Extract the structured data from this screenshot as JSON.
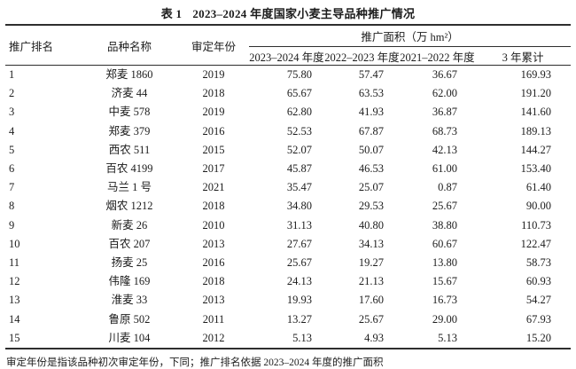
{
  "table": {
    "label": "表 1",
    "title": "2023–2024 年度国家小麦主导品种推广情况",
    "columns": {
      "rank": "推广排名",
      "variety": "品种名称",
      "year": "审定年份",
      "area_group": "推广面积（万 hm²）",
      "sub": {
        "y2324": "2023–2024 年度",
        "y2223": "2022–2023 年度",
        "y2122": "2021–2022 年度",
        "total": "3 年累计"
      }
    },
    "rows": [
      {
        "rank": "1",
        "variety": "郑麦 1860",
        "year": "2019",
        "y2324": "75.80",
        "y2223": "57.47",
        "y2122": "36.67",
        "total": "169.93"
      },
      {
        "rank": "2",
        "variety": "济麦 44",
        "year": "2018",
        "y2324": "65.67",
        "y2223": "63.53",
        "y2122": "62.00",
        "total": "191.20"
      },
      {
        "rank": "3",
        "variety": "中麦 578",
        "year": "2019",
        "y2324": "62.80",
        "y2223": "41.93",
        "y2122": "36.87",
        "total": "141.60"
      },
      {
        "rank": "4",
        "variety": "郑麦 379",
        "year": "2016",
        "y2324": "52.53",
        "y2223": "67.87",
        "y2122": "68.73",
        "total": "189.13"
      },
      {
        "rank": "5",
        "variety": "西农 511",
        "year": "2015",
        "y2324": "52.07",
        "y2223": "50.07",
        "y2122": "42.13",
        "total": "144.27"
      },
      {
        "rank": "6",
        "variety": "百农 4199",
        "year": "2017",
        "y2324": "45.87",
        "y2223": "46.53",
        "y2122": "61.00",
        "total": "153.40"
      },
      {
        "rank": "7",
        "variety": "马兰 1 号",
        "year": "2021",
        "y2324": "35.47",
        "y2223": "25.07",
        "y2122": "0.87",
        "total": "61.40"
      },
      {
        "rank": "8",
        "variety": "烟农 1212",
        "year": "2018",
        "y2324": "34.80",
        "y2223": "29.53",
        "y2122": "25.67",
        "total": "90.00"
      },
      {
        "rank": "9",
        "variety": "新麦 26",
        "year": "2010",
        "y2324": "31.13",
        "y2223": "40.80",
        "y2122": "38.80",
        "total": "110.73"
      },
      {
        "rank": "10",
        "variety": "百农 207",
        "year": "2013",
        "y2324": "27.67",
        "y2223": "34.13",
        "y2122": "60.67",
        "total": "122.47"
      },
      {
        "rank": "11",
        "variety": "扬麦 25",
        "year": "2016",
        "y2324": "25.67",
        "y2223": "19.27",
        "y2122": "13.80",
        "total": "58.73"
      },
      {
        "rank": "12",
        "variety": "伟隆 169",
        "year": "2018",
        "y2324": "24.13",
        "y2223": "21.13",
        "y2122": "15.67",
        "total": "60.93"
      },
      {
        "rank": "13",
        "variety": "淮麦 33",
        "year": "2013",
        "y2324": "19.93",
        "y2223": "17.60",
        "y2122": "16.73",
        "total": "54.27"
      },
      {
        "rank": "14",
        "variety": "鲁原 502",
        "year": "2011",
        "y2324": "13.27",
        "y2223": "25.67",
        "y2122": "29.00",
        "total": "67.93"
      },
      {
        "rank": "15",
        "variety": "川麦 104",
        "year": "2012",
        "y2324": "5.13",
        "y2223": "4.93",
        "y2122": "5.13",
        "total": "15.20"
      }
    ],
    "footnote": "审定年份是指该品种初次审定年份，下同；推广排名依据 2023–2024 年度的推广面积"
  },
  "colors": {
    "text": "#1c1c1c",
    "rule": "#2e2e2e",
    "background": "#ffffff"
  }
}
